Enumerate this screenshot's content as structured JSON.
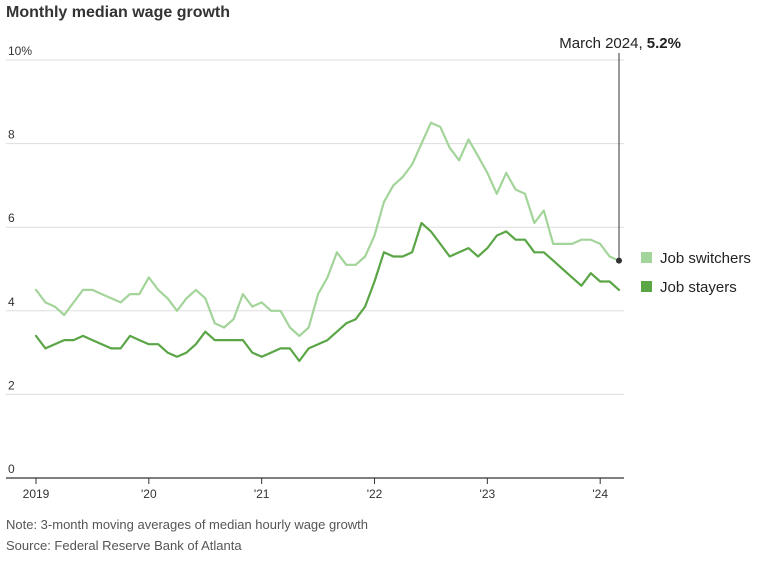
{
  "header": {
    "title": "Monthly median wage growth"
  },
  "footer": {
    "note": "Note: 3-month moving averages of median hourly wage growth",
    "source": "Source: Federal Reserve Bank of Atlanta"
  },
  "annotation": {
    "label": "March 2024, ",
    "value": "5.2%"
  },
  "colors": {
    "switchers": "#a3d49a",
    "stayers": "#5aa545",
    "grid": "#dddddd",
    "axis": "#333333"
  },
  "chart_data": {
    "type": "line",
    "title": "Monthly median wage growth",
    "xlabel": "",
    "ylabel": "",
    "ylim": [
      0,
      10
    ],
    "xlim": [
      "2019-01",
      "2024-03"
    ],
    "y_ticks": [
      {
        "value": 0,
        "label": "0"
      },
      {
        "value": 2,
        "label": "2"
      },
      {
        "value": 4,
        "label": "4"
      },
      {
        "value": 6,
        "label": "6"
      },
      {
        "value": 8,
        "label": "8"
      },
      {
        "value": 10,
        "label": "10%"
      }
    ],
    "x_ticks": [
      {
        "value": "2019-01",
        "label": "2019"
      },
      {
        "value": "2020-01",
        "label": "'20"
      },
      {
        "value": "2021-01",
        "label": "'21"
      },
      {
        "value": "2022-01",
        "label": "'22"
      },
      {
        "value": "2023-01",
        "label": "'23"
      },
      {
        "value": "2024-01",
        "label": "'24"
      }
    ],
    "grid": true,
    "legend": "right",
    "x": [
      "2019-01",
      "2019-02",
      "2019-03",
      "2019-04",
      "2019-05",
      "2019-06",
      "2019-07",
      "2019-08",
      "2019-09",
      "2019-10",
      "2019-11",
      "2019-12",
      "2020-01",
      "2020-02",
      "2020-03",
      "2020-04",
      "2020-05",
      "2020-06",
      "2020-07",
      "2020-08",
      "2020-09",
      "2020-10",
      "2020-11",
      "2020-12",
      "2021-01",
      "2021-02",
      "2021-03",
      "2021-04",
      "2021-05",
      "2021-06",
      "2021-07",
      "2021-08",
      "2021-09",
      "2021-10",
      "2021-11",
      "2021-12",
      "2022-01",
      "2022-02",
      "2022-03",
      "2022-04",
      "2022-05",
      "2022-06",
      "2022-07",
      "2022-08",
      "2022-09",
      "2022-10",
      "2022-11",
      "2022-12",
      "2023-01",
      "2023-02",
      "2023-03",
      "2023-04",
      "2023-05",
      "2023-06",
      "2023-07",
      "2023-08",
      "2023-09",
      "2023-10",
      "2023-11",
      "2023-12",
      "2024-01",
      "2024-02",
      "2024-03"
    ],
    "series": [
      {
        "name": "Job switchers",
        "values": [
          4.5,
          4.2,
          4.1,
          3.9,
          4.2,
          4.5,
          4.5,
          4.4,
          4.3,
          4.2,
          4.4,
          4.4,
          4.8,
          4.5,
          4.3,
          4.0,
          4.3,
          4.5,
          4.3,
          3.7,
          3.6,
          3.8,
          4.4,
          4.1,
          4.2,
          4.0,
          4.0,
          3.6,
          3.4,
          3.6,
          4.4,
          4.8,
          5.4,
          5.1,
          5.1,
          5.3,
          5.8,
          6.6,
          7.0,
          7.2,
          7.5,
          8.0,
          8.5,
          8.4,
          7.9,
          7.6,
          8.1,
          7.7,
          7.3,
          6.8,
          7.3,
          6.9,
          6.8,
          6.1,
          6.4,
          5.6,
          5.6,
          5.6,
          5.7,
          5.7,
          5.6,
          5.3,
          5.2
        ]
      },
      {
        "name": "Job stayers",
        "values": [
          3.4,
          3.1,
          3.2,
          3.3,
          3.3,
          3.4,
          3.3,
          3.2,
          3.1,
          3.1,
          3.4,
          3.3,
          3.2,
          3.2,
          3.0,
          2.9,
          3.0,
          3.2,
          3.5,
          3.3,
          3.3,
          3.3,
          3.3,
          3.0,
          2.9,
          3.0,
          3.1,
          3.1,
          2.8,
          3.1,
          3.2,
          3.3,
          3.5,
          3.7,
          3.8,
          4.1,
          4.7,
          5.4,
          5.3,
          5.3,
          5.4,
          6.1,
          5.9,
          5.6,
          5.3,
          5.4,
          5.5,
          5.3,
          5.5,
          5.8,
          5.9,
          5.7,
          5.7,
          5.4,
          5.4,
          5.2,
          5.0,
          4.8,
          4.6,
          4.9,
          4.7,
          4.7,
          4.5
        ]
      }
    ]
  }
}
